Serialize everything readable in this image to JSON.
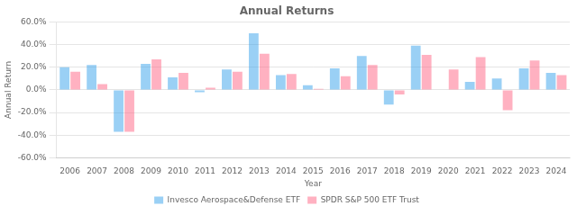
{
  "chart_data": {
    "type": "bar",
    "title": "Annual Returns",
    "xlabel": "Year",
    "ylabel": "Annual Return",
    "categories": [
      "2006",
      "2007",
      "2008",
      "2009",
      "2010",
      "2011",
      "2012",
      "2013",
      "2014",
      "2015",
      "2016",
      "2017",
      "2018",
      "2019",
      "2020",
      "2021",
      "2022",
      "2023",
      "2024"
    ],
    "series": [
      {
        "name": "Invesco Aerospace&Defense ETF",
        "values": [
          0.2,
          0.22,
          -0.37,
          0.23,
          0.11,
          -0.02,
          0.18,
          0.5,
          0.13,
          0.04,
          0.19,
          0.3,
          -0.13,
          0.39,
          0.0,
          0.07,
          0.1,
          0.19,
          0.15
        ]
      },
      {
        "name": "SPDR S&P 500 ETF Trust",
        "values": [
          0.16,
          0.05,
          -0.37,
          0.27,
          0.15,
          0.02,
          0.16,
          0.32,
          0.14,
          0.01,
          0.12,
          0.22,
          -0.04,
          0.31,
          0.18,
          0.29,
          -0.18,
          0.26,
          0.13
        ]
      }
    ],
    "ylim": [
      -0.6,
      0.6
    ],
    "yticks": [
      {
        "value": -0.6,
        "label": "-60.0%"
      },
      {
        "value": -0.4,
        "label": "-40.0%"
      },
      {
        "value": -0.2,
        "label": "-20.0%"
      },
      {
        "value": 0.0,
        "label": "0.0%"
      },
      {
        "value": 0.2,
        "label": "20.0%"
      },
      {
        "value": 0.4,
        "label": "40.0%"
      },
      {
        "value": 0.6,
        "label": "60.0%"
      }
    ],
    "grid": true,
    "legend": "bottom"
  }
}
